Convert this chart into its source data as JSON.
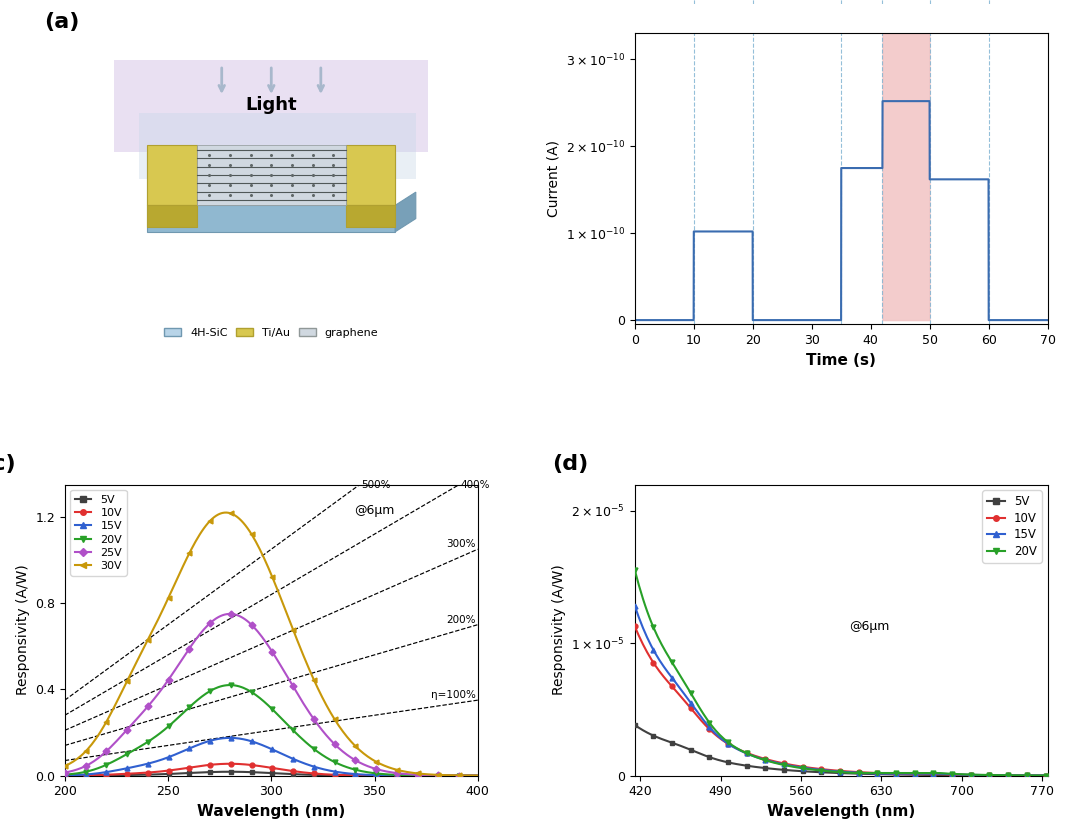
{
  "fig_width": 10.8,
  "fig_height": 8.34,
  "panel_b": {
    "xticks": [
      0,
      10,
      20,
      30,
      40,
      50,
      60,
      70
    ],
    "xlabel": "Time (s)",
    "ylabel": "Current (A)",
    "dashed_x": [
      10,
      20,
      35,
      42,
      50,
      60
    ],
    "highlight_color": "#f2c4c4",
    "signal_color": "#3a6cb0",
    "uv_color": "#7b2d8b",
    "blue_color": "#8bbdd4"
  },
  "panel_c": {
    "xlabel": "Wavelength (nm)",
    "ylabel": "Responsivity (A/W)",
    "xticks": [
      200,
      250,
      300,
      350,
      400
    ],
    "yticks": [
      0.0,
      0.4,
      0.8,
      1.2
    ],
    "xlim": [
      200,
      400
    ],
    "ylim": [
      0,
      1.35
    ],
    "annotation": "@6μm",
    "eta_labels": [
      "500%",
      "400%",
      "300%",
      "200%",
      "η=100%"
    ],
    "colors": [
      "#404040",
      "#e03030",
      "#3060d0",
      "#28a028",
      "#b050c8",
      "#c8980a"
    ],
    "labels": [
      "5V",
      "10V",
      "15V",
      "20V",
      "25V",
      "30V"
    ]
  },
  "panel_d": {
    "xlabel": "Wavelength (nm)",
    "ylabel": "Responsivity (A/W)",
    "xticks": [
      420,
      490,
      560,
      630,
      700,
      770
    ],
    "xlim": [
      415,
      775
    ],
    "ylim": [
      0,
      2.2e-05
    ],
    "annotation": "@6μm",
    "colors": [
      "#404040",
      "#e03030",
      "#3060d0",
      "#28a028"
    ],
    "labels": [
      "5V",
      "10V",
      "15V",
      "20V"
    ]
  }
}
